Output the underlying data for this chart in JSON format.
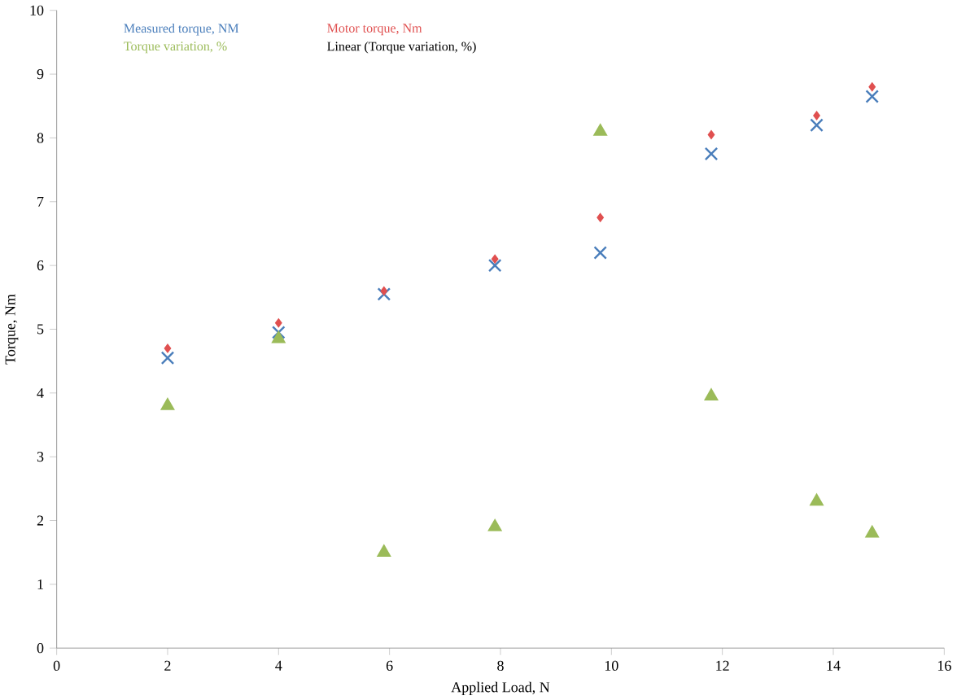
{
  "chart_data": {
    "type": "scatter",
    "xlabel": "Applied Load, N",
    "ylabel": "Torque, Nm",
    "x": [
      2,
      4,
      5.9,
      7.9,
      9.8,
      11.8,
      13.7,
      14.7
    ],
    "series": [
      {
        "name": "Measured torque, NM",
        "color": "#4a7ebb",
        "marker": "cross",
        "values": [
          4.55,
          4.95,
          5.55,
          6.0,
          6.2,
          7.75,
          8.2,
          8.65
        ]
      },
      {
        "name": "Motor torque, Nm",
        "color": "#e05050",
        "marker": "diamond",
        "values": [
          4.7,
          5.1,
          5.6,
          6.1,
          6.75,
          8.05,
          8.35,
          8.8
        ]
      },
      {
        "name": "Torque variation, %",
        "color": "#9bbb59",
        "marker": "triangle",
        "values": [
          3.8,
          4.85,
          1.5,
          1.9,
          8.1,
          3.95,
          2.3,
          1.8
        ]
      }
    ],
    "annotations": [
      "Linear (Torque variation, %)"
    ],
    "xlim": [
      0,
      16
    ],
    "ylim": [
      0,
      10
    ],
    "xticks": [
      0,
      2,
      4,
      6,
      8,
      10,
      12,
      14,
      16
    ],
    "yticks": [
      0,
      1,
      2,
      3,
      4,
      5,
      6,
      7,
      8,
      9,
      10
    ],
    "grid": false,
    "legend": "top left"
  }
}
